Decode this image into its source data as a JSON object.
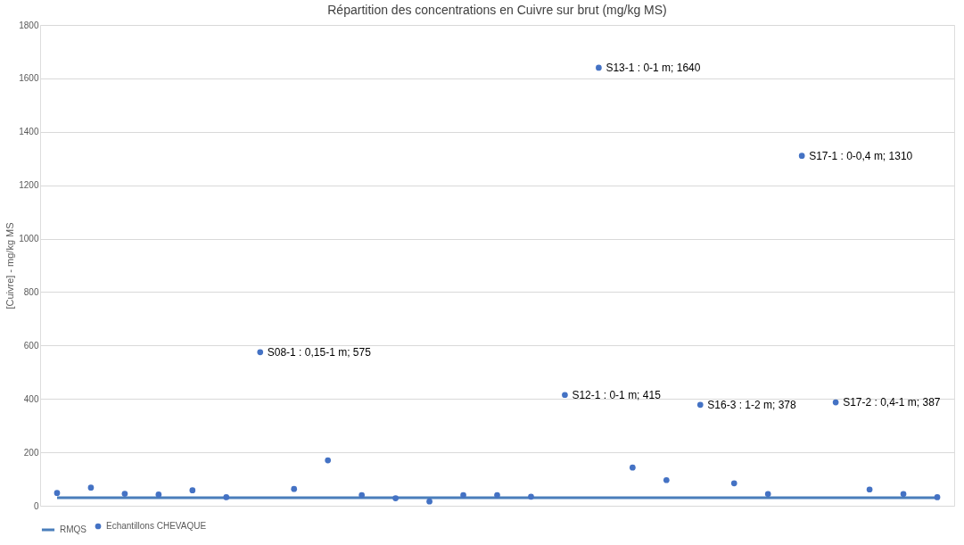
{
  "chart_data": {
    "type": "scatter",
    "title": "Répartition des concentrations en Cuivre sur brut (mg/kg MS)",
    "ylabel": "[Cuivre] - mg/kg MS",
    "categories": [
      null,
      null,
      null,
      null,
      null,
      null,
      null,
      null,
      null,
      null,
      null,
      null,
      null,
      null,
      null,
      null,
      null,
      null,
      null,
      null,
      null,
      null,
      null,
      null,
      null,
      null,
      null
    ],
    "series": [
      {
        "name": "Echantillons CHEVAQUE",
        "marker": "circle",
        "color": "#4472c4",
        "values": [
          48,
          68,
          45,
          42,
          58,
          32,
          575,
          63,
          170,
          40,
          28,
          16,
          40,
          40,
          34,
          415,
          1640,
          143,
          96,
          378,
          84,
          44,
          1310,
          387,
          61,
          44,
          32
        ],
        "value_labels": [
          null,
          null,
          null,
          null,
          null,
          null,
          "S08-1 : 0,15-1 m; 575",
          null,
          null,
          null,
          null,
          null,
          null,
          null,
          null,
          "S12-1 : 0-1 m; 415",
          "S13-1 : 0-1 m; 1640",
          null,
          null,
          "S16-3 : 1-2 m; 378",
          null,
          null,
          "S17-1 : 0-0,4 m; 1310",
          "S17-2 : 0,4-1 m; 387",
          null,
          null,
          null
        ]
      },
      {
        "name": "RMQS",
        "type": "line",
        "color": "#4a7ebb",
        "values": [
          30,
          30,
          30,
          30,
          30,
          30,
          30,
          30,
          30,
          30,
          30,
          30,
          30,
          30,
          30,
          30,
          30,
          30,
          30,
          30,
          30,
          30,
          30,
          30,
          30,
          30,
          30
        ]
      }
    ],
    "ylim": [
      0,
      1800
    ],
    "yticks": [
      0,
      200,
      400,
      600,
      800,
      1000,
      1200,
      1400,
      1600,
      1800
    ],
    "grid": "y",
    "legend": "bottom",
    "tick_labels": "y"
  }
}
